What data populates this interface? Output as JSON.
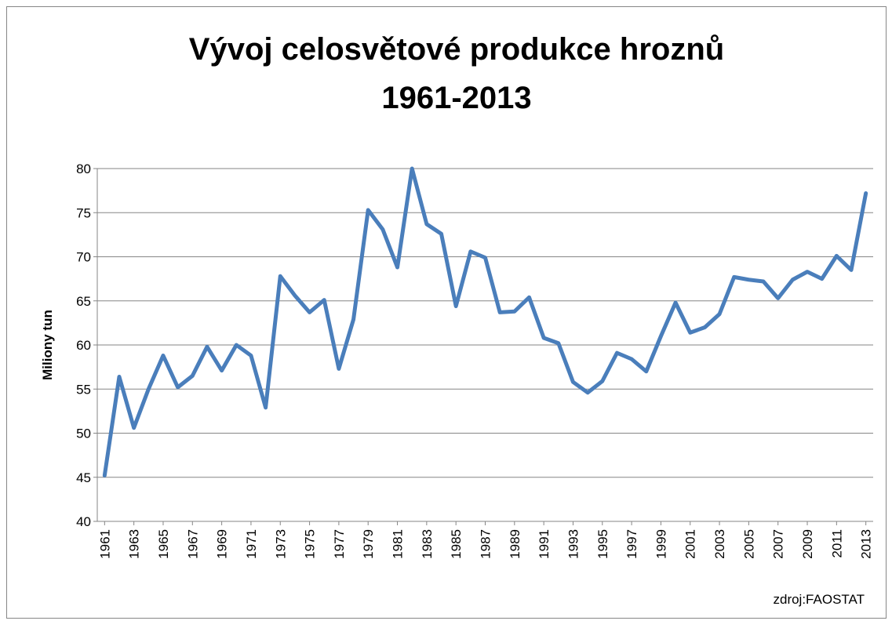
{
  "chart_data": {
    "type": "line",
    "title": [
      "Vývoj celosvětové produkce hroznů",
      "1961-2013"
    ],
    "ylabel": "Miliony tun",
    "annotation": "zdroj:FAOSTAT",
    "x": [
      1961,
      1962,
      1963,
      1964,
      1965,
      1966,
      1967,
      1968,
      1969,
      1970,
      1971,
      1972,
      1973,
      1974,
      1975,
      1976,
      1977,
      1978,
      1979,
      1980,
      1981,
      1982,
      1983,
      1984,
      1985,
      1986,
      1987,
      1988,
      1989,
      1990,
      1991,
      1992,
      1993,
      1994,
      1995,
      1996,
      1997,
      1998,
      1999,
      2000,
      2001,
      2002,
      2003,
      2004,
      2005,
      2006,
      2007,
      2008,
      2009,
      2010,
      2011,
      2012,
      2013
    ],
    "series": [
      {
        "name": "Miliony tun",
        "color": "#4a7ebb",
        "values": [
          45.2,
          56.4,
          50.6,
          55.0,
          58.8,
          55.2,
          56.5,
          59.8,
          57.1,
          60.0,
          58.8,
          52.9,
          67.8,
          65.6,
          63.7,
          65.1,
          57.3,
          62.9,
          75.3,
          73.1,
          68.8,
          80.0,
          73.7,
          72.6,
          64.4,
          70.6,
          69.9,
          63.7,
          63.8,
          65.4,
          60.8,
          60.2,
          55.8,
          54.6,
          55.9,
          59.1,
          58.4,
          57.0,
          61.0,
          64.8,
          61.4,
          62.0,
          63.5,
          67.7,
          67.4,
          67.2,
          65.3,
          67.4,
          68.3,
          67.5,
          70.1,
          68.5,
          77.2
        ]
      }
    ],
    "xlim": [
      1960.5,
      2013.5
    ],
    "xticks": [
      1961,
      1963,
      1965,
      1967,
      1969,
      1971,
      1973,
      1975,
      1977,
      1979,
      1981,
      1983,
      1985,
      1987,
      1989,
      1991,
      1993,
      1995,
      1997,
      1999,
      2001,
      2003,
      2005,
      2007,
      2009,
      2011,
      2013
    ],
    "ylim": [
      40,
      80
    ],
    "yticks": [
      40,
      45,
      50,
      55,
      60,
      65,
      70,
      75,
      80
    ],
    "grid": true
  }
}
